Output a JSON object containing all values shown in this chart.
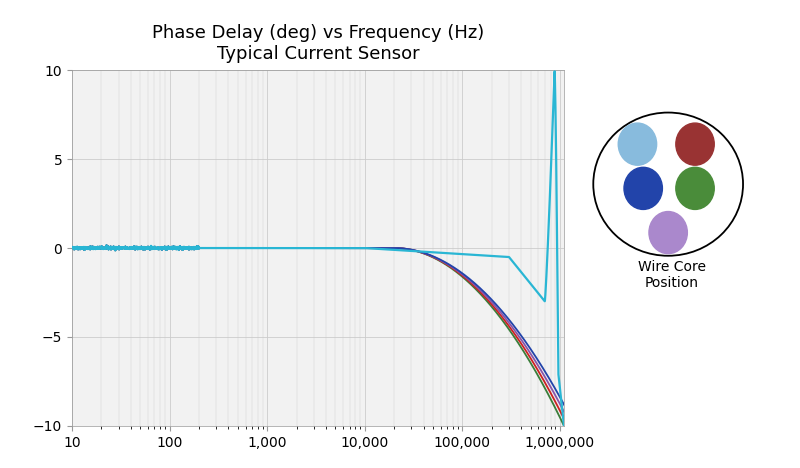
{
  "title_line1": "Phase Delay (deg) vs Frequency (Hz)",
  "title_line2": "Typical Current Sensor",
  "xmin": 10,
  "xmax": 1100000,
  "ymin": -10,
  "ymax": 10,
  "xticks": [
    10,
    100,
    1000,
    10000,
    100000,
    1000000
  ],
  "xtick_labels": [
    "10",
    "100",
    "1,000",
    "10,000",
    "100,000",
    "1,000,000"
  ],
  "yticks": [
    -10,
    -5,
    0,
    5,
    10
  ],
  "background_color": "#f2f2f2",
  "grid_color": "#cccccc",
  "title_fontsize": 13,
  "axis_fontsize": 10,
  "curve_colors": [
    "#29b6d4",
    "#2244aa",
    "#cc2222",
    "#3a7d3a",
    "#8855aa"
  ],
  "wire_dot_colors": [
    "#88bbdd",
    "#993333",
    "#2244aa",
    "#4a8c3a",
    "#aa88cc"
  ],
  "legend_label": "Wire Core\nPosition"
}
